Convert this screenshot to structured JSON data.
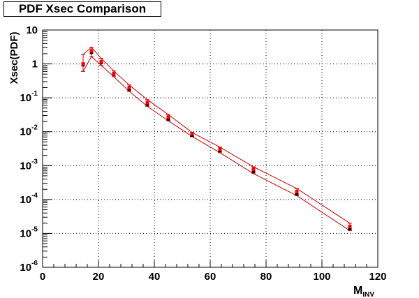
{
  "chart_data": {
    "type": "scatter",
    "title": "PDF Xsec Comparison",
    "xlabel_main": "M",
    "xlabel_sub": "INV",
    "ylabel": "Xsec(PDF)",
    "xlim": [
      0,
      120
    ],
    "ylim": [
      1e-06,
      10
    ],
    "yscale": "log",
    "grid": true,
    "x_ticks": [
      "0",
      "20",
      "40",
      "60",
      "80",
      "100",
      "120"
    ],
    "y_ticks": [
      {
        "base": "10",
        "exp": "-6"
      },
      {
        "base": "10",
        "exp": "-5"
      },
      {
        "base": "10",
        "exp": "-4"
      },
      {
        "base": "10",
        "exp": "-3"
      },
      {
        "base": "10",
        "exp": "-2"
      },
      {
        "base": "10",
        "exp": "-1"
      },
      {
        "base": "1",
        "exp": ""
      },
      {
        "base": "10",
        "exp": ""
      }
    ],
    "x": [
      14.5,
      17.5,
      21,
      25.5,
      31,
      37.5,
      45,
      53.5,
      63.5,
      75.5,
      91,
      110
    ],
    "series": [
      {
        "color": "#000000",
        "marker": "square",
        "values": [
          0.95,
          2.2,
          1.1,
          0.5,
          0.18,
          0.065,
          0.024,
          0.0078,
          0.0028,
          0.00068,
          0.00015,
          1.4e-05
        ]
      },
      {
        "color": "#ff0000",
        "marker": "square",
        "values": [
          1.0,
          2.4,
          1.15,
          0.52,
          0.2,
          0.072,
          0.027,
          0.0088,
          0.0031,
          0.00078,
          0.00017,
          1.6e-05
        ]
      }
    ],
    "band": {
      "color": "#cc0000",
      "upper": [
        1.9,
        3.1,
        1.45,
        0.62,
        0.24,
        0.088,
        0.032,
        0.0095,
        0.0035,
        0.00092,
        0.00021,
        2e-05
      ],
      "lower": [
        0.6,
        1.65,
        0.9,
        0.42,
        0.155,
        0.056,
        0.021,
        0.0073,
        0.0024,
        0.00058,
        0.00013,
        1.2e-05
      ]
    }
  }
}
